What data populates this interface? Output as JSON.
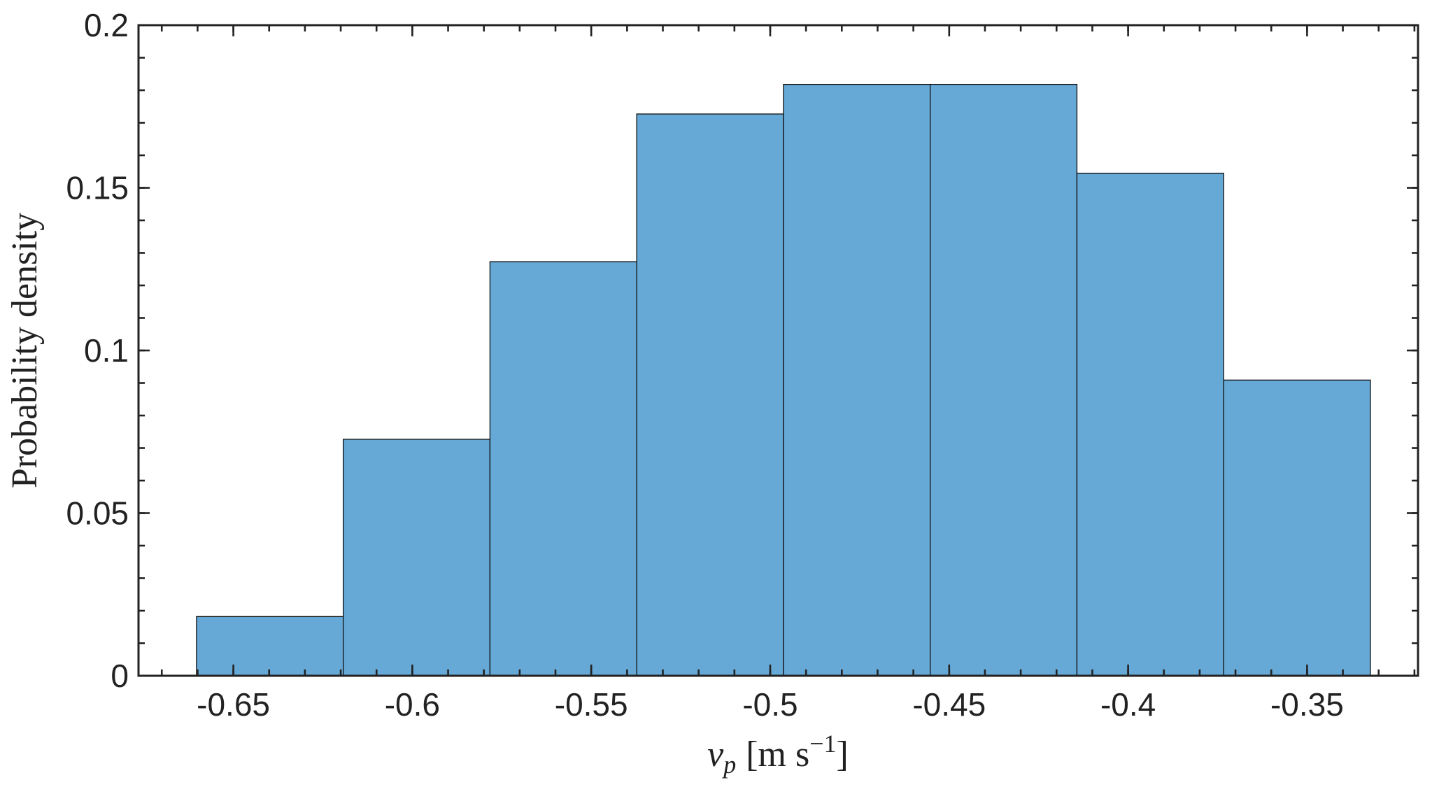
{
  "chart_data": {
    "type": "histogram",
    "x_label": {
      "variable": "v",
      "subscript": "p",
      "unit": "[m s",
      "exponent": "−1",
      "close": "]"
    },
    "y_label": "Probability density",
    "bins": [
      -0.6603,
      -0.6193,
      -0.5783,
      -0.5373,
      -0.4963,
      -0.4553,
      -0.4143,
      -0.3733,
      -0.3323
    ],
    "values": [
      0.0182,
      0.0727,
      0.1273,
      0.1727,
      0.1818,
      0.1818,
      0.1545,
      0.0909
    ],
    "color": "#66a9d6",
    "xlim": [
      -0.6765,
      -0.319
    ],
    "xticks": [
      -0.65,
      -0.6,
      -0.55,
      -0.5,
      -0.45,
      -0.4,
      -0.35
    ],
    "ylim": [
      0,
      0.2
    ],
    "yticks": [
      0,
      0.05,
      0.1,
      0.15,
      0.2
    ],
    "grid": false
  }
}
